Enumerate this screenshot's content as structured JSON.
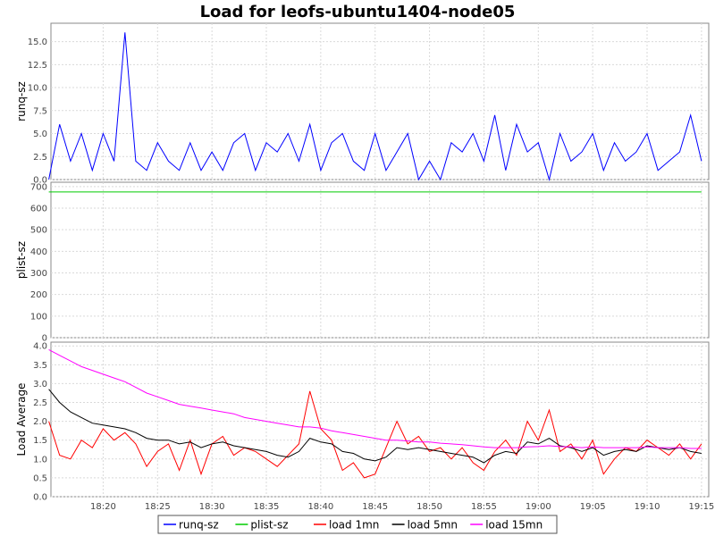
{
  "chart_data": {
    "type": "line",
    "title": "Load for leofs-ubuntu1404-node05",
    "xlim": [
      "18:15:12",
      "19:15:40"
    ],
    "x_ticks": [
      "18:20",
      "18:25",
      "18:30",
      "18:35",
      "18:40",
      "18:45",
      "18:50",
      "18:55",
      "19:00",
      "19:05",
      "19:10",
      "19:15"
    ],
    "legend": {
      "placement": "bottom-center",
      "entries": [
        "runq-sz",
        "plist-sz",
        "load 1mn",
        "load 5mn",
        "load 15mn"
      ]
    },
    "colors": {
      "runq-sz": "#0000ff",
      "plist-sz": "#00cc00",
      "load 1mn": "#ff0000",
      "load 5mn": "#000000",
      "load 15mn": "#ff00ff"
    },
    "panels": [
      {
        "ylabel": "runq-sz",
        "ylim": [
          0,
          17
        ],
        "yticks": [
          "0.0",
          "2.5",
          "5.0",
          "7.5",
          "10.0",
          "12.5",
          "15.0"
        ],
        "series": [
          {
            "name": "runq-sz",
            "x": [
              "18:15",
              "18:16",
              "18:17",
              "18:18",
              "18:19",
              "18:20",
              "18:21",
              "18:22",
              "18:23",
              "18:24",
              "18:25",
              "18:26",
              "18:27",
              "18:28",
              "18:29",
              "18:30",
              "18:31",
              "18:32",
              "18:33",
              "18:34",
              "18:35",
              "18:36",
              "18:37",
              "18:38",
              "18:39",
              "18:40",
              "18:41",
              "18:42",
              "18:43",
              "18:44",
              "18:45",
              "18:46",
              "18:47",
              "18:48",
              "18:49",
              "18:50",
              "18:51",
              "18:52",
              "18:53",
              "18:54",
              "18:55",
              "18:56",
              "18:57",
              "18:58",
              "18:59",
              "19:00",
              "19:01",
              "19:02",
              "19:03",
              "19:04",
              "19:05",
              "19:06",
              "19:07",
              "19:08",
              "19:09",
              "19:10",
              "19:11",
              "19:12",
              "19:13",
              "19:14",
              "19:15"
            ],
            "values": [
              0,
              6,
              2,
              5,
              1,
              5,
              2,
              16,
              2,
              1,
              4,
              2,
              1,
              4,
              1,
              3,
              1,
              4,
              5,
              1,
              4,
              3,
              5,
              2,
              6,
              1,
              4,
              5,
              2,
              1,
              5,
              1,
              3,
              5,
              0,
              2,
              0,
              4,
              3,
              5,
              2,
              7,
              1,
              6,
              3,
              4,
              0,
              5,
              2,
              3,
              5,
              1,
              4,
              2,
              3,
              5,
              1,
              2,
              3,
              7,
              2
            ]
          }
        ]
      },
      {
        "ylabel": "plist-sz",
        "ylim": [
          0,
          720
        ],
        "yticks": [
          "0",
          "100",
          "200",
          "300",
          "400",
          "500",
          "600",
          "700"
        ],
        "series": [
          {
            "name": "plist-sz",
            "x": [
              "18:15",
              "19:15"
            ],
            "values": [
              675,
              675
            ]
          }
        ]
      },
      {
        "ylabel": "Load Average",
        "ylim": [
          0,
          4.1
        ],
        "yticks": [
          "0.0",
          "0.5",
          "1.0",
          "1.5",
          "2.0",
          "2.5",
          "3.0",
          "3.5",
          "4.0"
        ],
        "series": [
          {
            "name": "load 1mn",
            "x": [
              "18:15",
              "18:16",
              "18:17",
              "18:18",
              "18:19",
              "18:20",
              "18:21",
              "18:22",
              "18:23",
              "18:24",
              "18:25",
              "18:26",
              "18:27",
              "18:28",
              "18:29",
              "18:30",
              "18:31",
              "18:32",
              "18:33",
              "18:34",
              "18:35",
              "18:36",
              "18:37",
              "18:38",
              "18:39",
              "18:40",
              "18:41",
              "18:42",
              "18:43",
              "18:44",
              "18:45",
              "18:46",
              "18:47",
              "18:48",
              "18:49",
              "18:50",
              "18:51",
              "18:52",
              "18:53",
              "18:54",
              "18:55",
              "18:56",
              "18:57",
              "18:58",
              "18:59",
              "19:00",
              "19:01",
              "19:02",
              "19:03",
              "19:04",
              "19:05",
              "19:06",
              "19:07",
              "19:08",
              "19:09",
              "19:10",
              "19:11",
              "19:12",
              "19:13",
              "19:14",
              "19:15"
            ],
            "values": [
              2.0,
              1.1,
              1.0,
              1.5,
              1.3,
              1.8,
              1.5,
              1.7,
              1.4,
              0.8,
              1.2,
              1.4,
              0.7,
              1.5,
              0.6,
              1.4,
              1.6,
              1.1,
              1.3,
              1.2,
              1.0,
              0.8,
              1.1,
              1.4,
              2.8,
              1.8,
              1.5,
              0.7,
              0.9,
              0.5,
              0.6,
              1.3,
              2.0,
              1.4,
              1.6,
              1.2,
              1.3,
              1.0,
              1.3,
              0.9,
              0.7,
              1.2,
              1.5,
              1.1,
              2.0,
              1.5,
              2.3,
              1.2,
              1.4,
              1.0,
              1.5,
              0.6,
              1.0,
              1.3,
              1.2,
              1.5,
              1.3,
              1.1,
              1.4,
              1.0,
              1.4
            ]
          },
          {
            "name": "load 5mn",
            "x": [
              "18:15",
              "18:16",
              "18:17",
              "18:18",
              "18:19",
              "18:20",
              "18:21",
              "18:22",
              "18:23",
              "18:24",
              "18:25",
              "18:26",
              "18:27",
              "18:28",
              "18:29",
              "18:30",
              "18:31",
              "18:32",
              "18:33",
              "18:34",
              "18:35",
              "18:36",
              "18:37",
              "18:38",
              "18:39",
              "18:40",
              "18:41",
              "18:42",
              "18:43",
              "18:44",
              "18:45",
              "18:46",
              "18:47",
              "18:48",
              "18:49",
              "18:50",
              "18:51",
              "18:52",
              "18:53",
              "18:54",
              "18:55",
              "18:56",
              "18:57",
              "18:58",
              "18:59",
              "19:00",
              "19:01",
              "19:02",
              "19:03",
              "19:04",
              "19:05",
              "19:06",
              "19:07",
              "19:08",
              "19:09",
              "19:10",
              "19:11",
              "19:12",
              "19:13",
              "19:14",
              "19:15"
            ],
            "values": [
              2.85,
              2.5,
              2.25,
              2.1,
              1.95,
              1.9,
              1.85,
              1.8,
              1.7,
              1.55,
              1.5,
              1.5,
              1.4,
              1.45,
              1.3,
              1.4,
              1.45,
              1.35,
              1.3,
              1.25,
              1.2,
              1.1,
              1.05,
              1.2,
              1.55,
              1.45,
              1.4,
              1.2,
              1.15,
              1.0,
              0.95,
              1.05,
              1.3,
              1.25,
              1.3,
              1.25,
              1.2,
              1.15,
              1.1,
              1.05,
              0.9,
              1.1,
              1.2,
              1.15,
              1.45,
              1.4,
              1.55,
              1.35,
              1.3,
              1.2,
              1.3,
              1.1,
              1.2,
              1.25,
              1.2,
              1.35,
              1.3,
              1.25,
              1.3,
              1.2,
              1.15
            ]
          },
          {
            "name": "load 15mn",
            "x": [
              "18:15",
              "18:16",
              "18:17",
              "18:18",
              "18:19",
              "18:20",
              "18:21",
              "18:22",
              "18:23",
              "18:24",
              "18:25",
              "18:26",
              "18:27",
              "18:28",
              "18:29",
              "18:30",
              "18:31",
              "18:32",
              "18:33",
              "18:34",
              "18:35",
              "18:36",
              "18:37",
              "18:38",
              "18:39",
              "18:40",
              "18:41",
              "18:42",
              "18:43",
              "18:44",
              "18:45",
              "18:46",
              "18:47",
              "18:48",
              "18:49",
              "18:50",
              "18:51",
              "18:52",
              "18:53",
              "18:54",
              "18:55",
              "18:56",
              "18:57",
              "18:58",
              "18:59",
              "19:00",
              "19:01",
              "19:02",
              "19:03",
              "19:04",
              "19:05",
              "19:06",
              "19:07",
              "19:08",
              "19:09",
              "19:10",
              "19:11",
              "19:12",
              "19:13",
              "19:14",
              "19:15"
            ],
            "values": [
              3.9,
              3.75,
              3.6,
              3.45,
              3.35,
              3.25,
              3.15,
              3.05,
              2.9,
              2.75,
              2.65,
              2.55,
              2.45,
              2.4,
              2.35,
              2.3,
              2.25,
              2.2,
              2.1,
              2.05,
              2.0,
              1.95,
              1.9,
              1.85,
              1.85,
              1.82,
              1.75,
              1.7,
              1.65,
              1.6,
              1.55,
              1.5,
              1.5,
              1.48,
              1.45,
              1.45,
              1.42,
              1.4,
              1.38,
              1.35,
              1.32,
              1.3,
              1.3,
              1.3,
              1.32,
              1.33,
              1.35,
              1.33,
              1.32,
              1.3,
              1.32,
              1.3,
              1.3,
              1.3,
              1.3,
              1.32,
              1.3,
              1.3,
              1.3,
              1.28,
              1.28
            ]
          }
        ]
      }
    ]
  }
}
